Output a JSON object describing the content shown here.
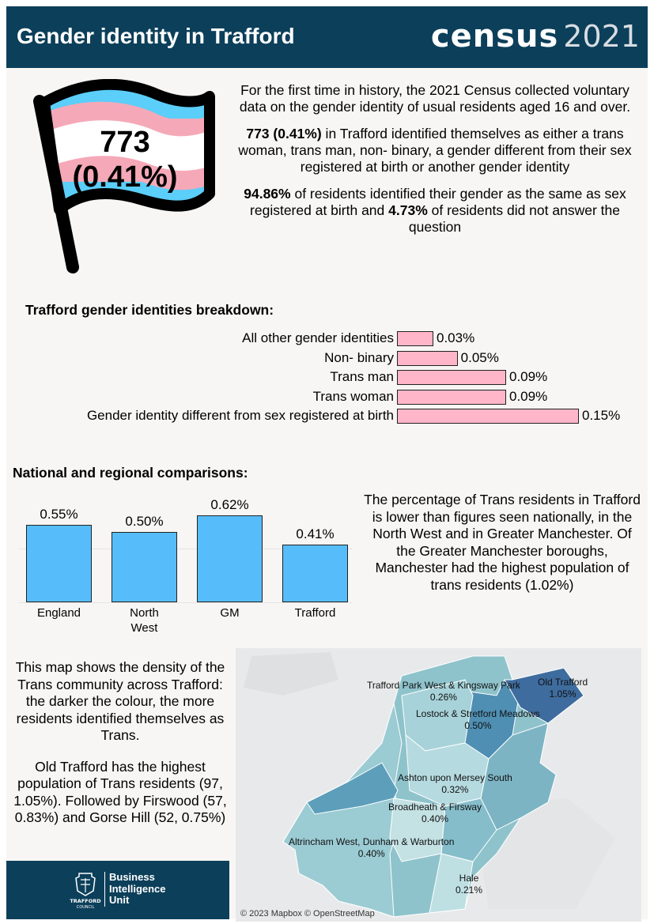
{
  "header": {
    "title": "Gender identity in Trafford",
    "logo_word": "census",
    "logo_year": "2021"
  },
  "flag": {
    "count": "773",
    "percent": "(0.41%)",
    "stripe_colors": [
      "#5bcefa",
      "#f5a9b8",
      "#ffffff"
    ]
  },
  "intro": {
    "p1": "For the first time in history, the 2021 Census collected voluntary data on the gender identity of usual residents aged 16 and over.",
    "p2_bold": "773 (0.41%)",
    "p2_rest": " in Trafford identified themselves as either a trans woman, trans man, non- binary, a gender different from their sex registered at birth or another gender identity",
    "p3_bold1": "94.86%",
    "p3_mid": " of residents identified their gender as the same as sex registered at birth and ",
    "p3_bold2": "4.73%",
    "p3_rest": " of residents did not answer the question"
  },
  "breakdown_title": "Trafford gender identities breakdown:",
  "comparison_title": "National and regional comparisons:",
  "chart_data": [
    {
      "type": "bar",
      "orientation": "horizontal",
      "title": "Trafford gender identities breakdown:",
      "categories": [
        "All other gender identities",
        "Non- binary",
        "Trans man",
        "Trans woman",
        "Gender identity different from sex registered at birth"
      ],
      "values": [
        0.03,
        0.05,
        0.09,
        0.09,
        0.15
      ],
      "value_labels": [
        "0.03%",
        "0.05%",
        "0.09%",
        "0.09%",
        "0.15%"
      ],
      "xlim": [
        0,
        0.15
      ],
      "bar_color": "#ffb6c8"
    },
    {
      "type": "bar",
      "orientation": "vertical",
      "title": "National and regional comparisons:",
      "categories": [
        "England",
        "North\nWest",
        "GM",
        "Trafford"
      ],
      "values": [
        0.55,
        0.5,
        0.62,
        0.41
      ],
      "value_labels": [
        "0.55%",
        "0.50%",
        "0.62%",
        "0.41%"
      ],
      "ylim": [
        0,
        0.62
      ],
      "bar_color": "#56bdfa"
    }
  ],
  "comparison_text": "The percentage of Trans residents in Trafford is lower than figures seen nationally, in the North West and in Greater Manchester. Of the Greater Manchester boroughs, Manchester had the highest population of trans residents (1.02%)",
  "map_text": {
    "p1": "This map shows the density of the Trans community across Trafford: the darker the colour, the more residents identified themselves as Trans.",
    "p2": "Old Trafford has the highest population of Trans residents (97, 1.05%). Followed by Firswood (57, 0.83%) and Gorse Hill (52, 0.75%)"
  },
  "map": {
    "labels": [
      {
        "name": "Trafford Park West & Kingsway Park",
        "value": "0.26%"
      },
      {
        "name": "Old Trafford",
        "value": "1.05%"
      },
      {
        "name": "Lostock & Stretford Meadows",
        "value": "0.50%"
      },
      {
        "name": "Ashton upon Mersey South",
        "value": "0.32%"
      },
      {
        "name": "Broadheath & Firsway",
        "value": "0.40%"
      },
      {
        "name": "Altrincham West, Dunham & Warburton",
        "value": "0.40%"
      },
      {
        "name": "Hale",
        "value": "0.21%"
      }
    ],
    "attribution": "© 2023 Mapbox © OpenStreetMap"
  },
  "footer": {
    "council_line1": "TRAFFORD",
    "council_line2": "COUNCIL",
    "unit_line1": "Business",
    "unit_line2": "Intelligence",
    "unit_line3": "Unit"
  }
}
